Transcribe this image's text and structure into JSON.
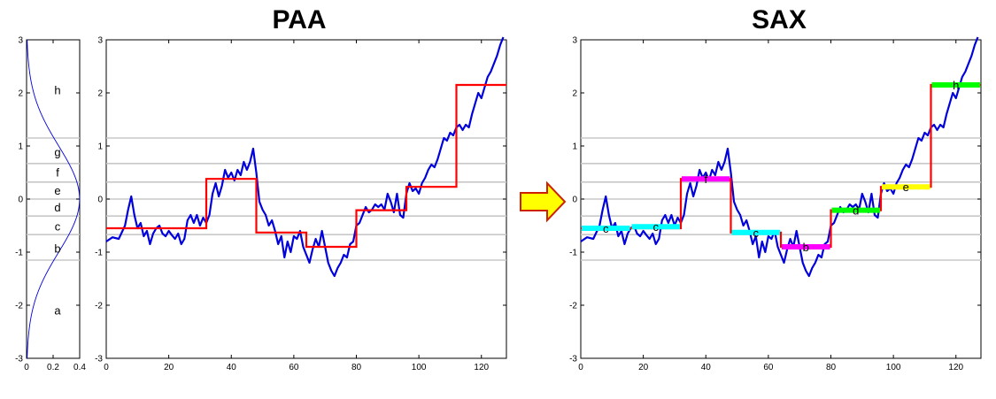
{
  "titles": {
    "paa": "PAA",
    "sax": "SAX"
  },
  "colors": {
    "series": "#0000dd",
    "paa": "#ff0000",
    "grid": "#c8c8c8",
    "axis": "#000000",
    "arrow_fill": "#ffff00",
    "arrow_stroke": "#cc2200"
  },
  "chart_data": [
    {
      "type": "line",
      "name": "gaussian",
      "xlim": [
        0,
        0.4
      ],
      "ylim": [
        -3,
        3
      ],
      "x_ticks": [
        0,
        0.2,
        0.4
      ],
      "x_tick_labels": [
        "0",
        "0.2",
        "0.4"
      ],
      "y_ticks": [
        -3,
        -2,
        -1,
        0,
        1,
        2,
        3
      ],
      "y_tick_labels": [
        "-3",
        "-2",
        "-1",
        "0",
        "1",
        "2",
        "3"
      ],
      "breakpoints": [
        -1.15,
        -0.67,
        -0.32,
        0,
        0.32,
        0.67,
        1.15
      ],
      "symbols": [
        {
          "label": "a",
          "y": -2.1
        },
        {
          "label": "b",
          "y": -0.93
        },
        {
          "label": "c",
          "y": -0.52
        },
        {
          "label": "d",
          "y": -0.16
        },
        {
          "label": "e",
          "y": 0.16
        },
        {
          "label": "f",
          "y": 0.5
        },
        {
          "label": "g",
          "y": 0.88
        },
        {
          "label": "h",
          "y": 2.05
        }
      ]
    },
    {
      "type": "line",
      "name": "paa",
      "title": "PAA",
      "xlim": [
        0,
        128
      ],
      "ylim": [
        -3,
        3
      ],
      "x_ticks": [
        0,
        20,
        40,
        60,
        80,
        100,
        120
      ],
      "x_tick_labels": [
        "0",
        "20",
        "40",
        "60",
        "80",
        "100",
        "120"
      ],
      "y_ticks": [
        -3,
        -2,
        -1,
        0,
        1,
        2,
        3
      ],
      "y_tick_labels": [
        "-3",
        "-2",
        "-1",
        "0",
        "1",
        "2",
        "3"
      ],
      "breakpoints": [
        -1.15,
        -0.67,
        -0.32,
        0,
        0.32,
        0.67,
        1.15
      ],
      "series_points": [
        [
          0,
          -0.8
        ],
        [
          2,
          -0.72
        ],
        [
          4,
          -0.75
        ],
        [
          6,
          -0.5
        ],
        [
          7,
          -0.2
        ],
        [
          8,
          0.05
        ],
        [
          9,
          -0.3
        ],
        [
          10,
          -0.55
        ],
        [
          11,
          -0.45
        ],
        [
          12,
          -0.7
        ],
        [
          13,
          -0.6
        ],
        [
          14,
          -0.85
        ],
        [
          15,
          -0.65
        ],
        [
          16,
          -0.55
        ],
        [
          17,
          -0.5
        ],
        [
          18,
          -0.65
        ],
        [
          19,
          -0.7
        ],
        [
          20,
          -0.6
        ],
        [
          21,
          -0.68
        ],
        [
          22,
          -0.75
        ],
        [
          23,
          -0.65
        ],
        [
          24,
          -0.85
        ],
        [
          25,
          -0.75
        ],
        [
          26,
          -0.4
        ],
        [
          27,
          -0.3
        ],
        [
          28,
          -0.45
        ],
        [
          29,
          -0.3
        ],
        [
          30,
          -0.5
        ],
        [
          31,
          -0.35
        ],
        [
          32,
          -0.45
        ],
        [
          33,
          -0.3
        ],
        [
          34,
          0.1
        ],
        [
          35,
          0.3
        ],
        [
          36,
          0.05
        ],
        [
          37,
          0.25
        ],
        [
          38,
          0.55
        ],
        [
          39,
          0.4
        ],
        [
          40,
          0.5
        ],
        [
          41,
          0.35
        ],
        [
          42,
          0.55
        ],
        [
          43,
          0.45
        ],
        [
          44,
          0.7
        ],
        [
          45,
          0.55
        ],
        [
          46,
          0.7
        ],
        [
          47,
          0.95
        ],
        [
          48,
          0.5
        ],
        [
          49,
          -0.05
        ],
        [
          50,
          -0.2
        ],
        [
          51,
          -0.3
        ],
        [
          52,
          -0.5
        ],
        [
          53,
          -0.4
        ],
        [
          54,
          -0.6
        ],
        [
          55,
          -0.85
        ],
        [
          56,
          -0.7
        ],
        [
          57,
          -1.1
        ],
        [
          58,
          -0.8
        ],
        [
          59,
          -1.0
        ],
        [
          60,
          -0.7
        ],
        [
          61,
          -0.75
        ],
        [
          62,
          -0.6
        ],
        [
          63,
          -0.9
        ],
        [
          64,
          -1.05
        ],
        [
          65,
          -1.2
        ],
        [
          66,
          -0.95
        ],
        [
          67,
          -0.75
        ],
        [
          68,
          -0.9
        ],
        [
          69,
          -0.6
        ],
        [
          70,
          -0.9
        ],
        [
          71,
          -1.2
        ],
        [
          72,
          -1.35
        ],
        [
          73,
          -1.45
        ],
        [
          74,
          -1.3
        ],
        [
          75,
          -1.2
        ],
        [
          76,
          -1.05
        ],
        [
          77,
          -1.1
        ],
        [
          78,
          -0.85
        ],
        [
          79,
          -0.8
        ],
        [
          80,
          -0.5
        ],
        [
          81,
          -0.45
        ],
        [
          82,
          -0.3
        ],
        [
          83,
          -0.15
        ],
        [
          84,
          -0.25
        ],
        [
          85,
          -0.2
        ],
        [
          86,
          -0.1
        ],
        [
          87,
          -0.15
        ],
        [
          88,
          -0.1
        ],
        [
          89,
          -0.2
        ],
        [
          90,
          0.1
        ],
        [
          91,
          -0.05
        ],
        [
          92,
          -0.25
        ],
        [
          93,
          0.1
        ],
        [
          94,
          -0.3
        ],
        [
          95,
          -0.35
        ],
        [
          96,
          0.1
        ],
        [
          97,
          0.3
        ],
        [
          98,
          0.15
        ],
        [
          99,
          0.2
        ],
        [
          100,
          0.1
        ],
        [
          101,
          0.3
        ],
        [
          102,
          0.4
        ],
        [
          103,
          0.55
        ],
        [
          104,
          0.65
        ],
        [
          105,
          0.6
        ],
        [
          106,
          0.75
        ],
        [
          107,
          0.95
        ],
        [
          108,
          1.15
        ],
        [
          109,
          1.1
        ],
        [
          110,
          1.25
        ],
        [
          111,
          1.2
        ],
        [
          112,
          1.35
        ],
        [
          113,
          1.4
        ],
        [
          114,
          1.3
        ],
        [
          115,
          1.4
        ],
        [
          116,
          1.35
        ],
        [
          117,
          1.6
        ],
        [
          118,
          1.8
        ],
        [
          119,
          2.0
        ],
        [
          120,
          1.9
        ],
        [
          121,
          2.1
        ],
        [
          122,
          2.3
        ],
        [
          123,
          2.4
        ],
        [
          124,
          2.55
        ],
        [
          125,
          2.7
        ],
        [
          126,
          2.9
        ],
        [
          127,
          3.05
        ]
      ],
      "paa_segments": [
        {
          "x0": 0,
          "x1": 32,
          "value": -0.55
        },
        {
          "x0": 32,
          "x1": 48,
          "value": 0.38
        },
        {
          "x0": 48,
          "x1": 64,
          "value": -0.63
        },
        {
          "x0": 64,
          "x1": 80,
          "value": -0.9
        },
        {
          "x0": 80,
          "x1": 96,
          "value": -0.21
        },
        {
          "x0": 96,
          "x1": 112,
          "value": 0.23
        },
        {
          "x0": 112,
          "x1": 128,
          "value": 2.15
        }
      ]
    },
    {
      "type": "line",
      "name": "sax",
      "title": "SAX",
      "xlim": [
        0,
        128
      ],
      "ylim": [
        -3,
        3
      ],
      "x_ticks": [
        0,
        20,
        40,
        60,
        80,
        100,
        120
      ],
      "x_tick_labels": [
        "0",
        "20",
        "40",
        "60",
        "80",
        "100",
        "120"
      ],
      "y_ticks": [
        -3,
        -2,
        -1,
        0,
        1,
        2,
        3
      ],
      "y_tick_labels": [
        "-3",
        "-2",
        "-1",
        "0",
        "1",
        "2",
        "3"
      ],
      "breakpoints": [
        -1.15,
        -0.67,
        -0.32,
        0,
        0.32,
        0.67,
        1.15
      ],
      "sax_segments": [
        {
          "x0": 0,
          "x1": 16,
          "value": -0.55,
          "symbol": "c",
          "color": "#00ffff"
        },
        {
          "x0": 16,
          "x1": 32,
          "value": -0.52,
          "symbol": "c",
          "color": "#00ffff"
        },
        {
          "x0": 32,
          "x1": 48,
          "value": 0.38,
          "symbol": "f",
          "color": "#ff00ff"
        },
        {
          "x0": 48,
          "x1": 64,
          "value": -0.63,
          "symbol": "c",
          "color": "#00ffff"
        },
        {
          "x0": 64,
          "x1": 80,
          "value": -0.9,
          "symbol": "b",
          "color": "#ff00ff"
        },
        {
          "x0": 80,
          "x1": 96,
          "value": -0.21,
          "symbol": "d",
          "color": "#00ff00"
        },
        {
          "x0": 96,
          "x1": 112,
          "value": 0.23,
          "symbol": "e",
          "color": "#ffff00"
        },
        {
          "x0": 112,
          "x1": 128,
          "value": 2.15,
          "symbol": "h",
          "color": "#00ff00"
        }
      ]
    }
  ]
}
